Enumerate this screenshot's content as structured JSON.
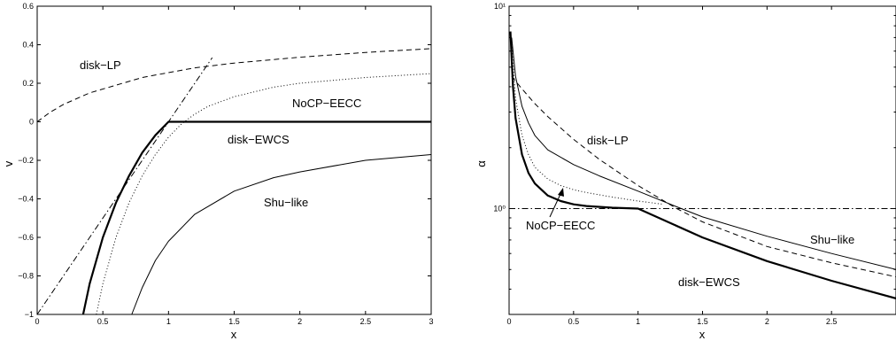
{
  "chart_data": [
    {
      "type": "line",
      "xlabel": "x",
      "ylabel": "v",
      "xlim": [
        0,
        3
      ],
      "ylim": [
        -1,
        0.6
      ],
      "xticks": [
        0,
        0.5,
        1,
        1.5,
        2,
        2.5,
        3
      ],
      "xtick_labels": [
        "0",
        "0.5",
        "1",
        "1.5",
        "2",
        "2.5",
        "3"
      ],
      "yticks": [
        -1,
        -0.8,
        -0.6,
        -0.4,
        -0.2,
        0,
        0.2,
        0.4,
        0.6
      ],
      "ytick_labels": [
        "−1",
        "−0.8",
        "−0.6",
        "−0.4",
        "−0.2",
        "0",
        "0.2",
        "0.4",
        "0.6"
      ],
      "grid": false,
      "series": [
        {
          "name": "disk−LP",
          "style": "dashed",
          "x": [
            0,
            0.1,
            0.2,
            0.4,
            0.6,
            0.8,
            1.0,
            1.2,
            1.5,
            2.0,
            2.5,
            3.0
          ],
          "y": [
            0.0,
            0.05,
            0.09,
            0.15,
            0.19,
            0.23,
            0.255,
            0.28,
            0.305,
            0.335,
            0.36,
            0.38
          ]
        },
        {
          "name": "NoCP−EECC",
          "style": "dotted",
          "x": [
            0.45,
            0.5,
            0.6,
            0.7,
            0.8,
            0.9,
            1.0,
            1.1,
            1.2,
            1.3,
            1.5,
            1.8,
            2.0,
            2.5,
            3.0
          ],
          "y": [
            -1.0,
            -0.84,
            -0.6,
            -0.42,
            -0.28,
            -0.17,
            -0.08,
            -0.01,
            0.04,
            0.08,
            0.13,
            0.18,
            0.2,
            0.23,
            0.25
          ]
        },
        {
          "name": "disk−EWCS",
          "style": "thick",
          "x": [
            0.35,
            0.4,
            0.5,
            0.6,
            0.7,
            0.8,
            0.9,
            1.0,
            1.5,
            2.0,
            2.5,
            3.0
          ],
          "y": [
            -1.0,
            -0.84,
            -0.6,
            -0.42,
            -0.28,
            -0.16,
            -0.07,
            0.0,
            0.0,
            0.0,
            0.0,
            0.0
          ]
        },
        {
          "name": "Shu−like",
          "style": "thin",
          "x": [
            0.72,
            0.8,
            0.9,
            1.0,
            1.2,
            1.5,
            1.8,
            2.0,
            2.5,
            3.0
          ],
          "y": [
            -1.0,
            -0.86,
            -0.72,
            -0.62,
            -0.48,
            -0.36,
            -0.29,
            -0.26,
            -0.2,
            -0.17
          ]
        },
        {
          "name": "",
          "style": "dashdot",
          "x": [
            0,
            1.333
          ],
          "y": [
            -1.0,
            0.333
          ]
        }
      ],
      "annotations": [
        "disk−LP",
        "NoCP−EECC",
        "disk−EWCS",
        "Shu−like"
      ]
    },
    {
      "type": "line",
      "xlabel": "x",
      "ylabel": "α",
      "scale_y": "log",
      "xlim": [
        0,
        3
      ],
      "ylim": [
        0.3,
        10
      ],
      "xticks": [
        0,
        0.5,
        1,
        1.5,
        2,
        2.5
      ],
      "xtick_labels": [
        "0",
        "0.5",
        "1",
        "1.5",
        "2",
        "2.5"
      ],
      "yticks_major": [
        1,
        10
      ],
      "ytick_labels": [
        "10⁰",
        "10¹"
      ],
      "grid": false,
      "series": [
        {
          "name": "disk−LP",
          "style": "dashed",
          "x": [
            0.02,
            0.1,
            0.2,
            0.3,
            0.5,
            0.7,
            1.0,
            1.3,
            1.5,
            2.0,
            2.5,
            3.0
          ],
          "y": [
            4.5,
            3.9,
            3.3,
            2.85,
            2.2,
            1.75,
            1.3,
            1.0,
            0.86,
            0.65,
            0.54,
            0.46
          ]
        },
        {
          "name": "Shu−like",
          "style": "thin",
          "x": [
            0.02,
            0.05,
            0.1,
            0.15,
            0.2,
            0.3,
            0.5,
            0.7,
            1.0,
            1.3,
            1.5,
            2.0,
            2.5,
            3.0
          ],
          "y": [
            7.0,
            4.5,
            3.2,
            2.65,
            2.3,
            1.95,
            1.65,
            1.45,
            1.22,
            1.02,
            0.91,
            0.73,
            0.6,
            0.5
          ]
        },
        {
          "name": "NoCP−EECC",
          "style": "dotted",
          "x": [
            0.02,
            0.05,
            0.1,
            0.15,
            0.2,
            0.3,
            0.4,
            0.5,
            0.6,
            0.8,
            1.0,
            1.2
          ],
          "y": [
            6.5,
            3.5,
            2.3,
            1.85,
            1.6,
            1.4,
            1.3,
            1.24,
            1.2,
            1.14,
            1.09,
            1.05
          ]
        },
        {
          "name": "disk−EWCS",
          "style": "thick",
          "x": [
            0.01,
            0.03,
            0.05,
            0.1,
            0.15,
            0.2,
            0.3,
            0.4,
            0.5,
            0.6,
            0.8,
            1.0,
            1.5,
            2.0,
            2.5,
            3.0
          ],
          "y": [
            7.5,
            4.0,
            2.8,
            1.85,
            1.5,
            1.33,
            1.16,
            1.09,
            1.05,
            1.03,
            1.01,
            1.0,
            0.72,
            0.55,
            0.44,
            0.36
          ]
        },
        {
          "name": "",
          "style": "dashdot",
          "x": [
            0,
            3
          ],
          "y": [
            1,
            1
          ]
        }
      ],
      "annotations": [
        "disk−LP",
        "NoCP−EECC",
        "Shu−like",
        "disk−EWCS"
      ]
    }
  ]
}
